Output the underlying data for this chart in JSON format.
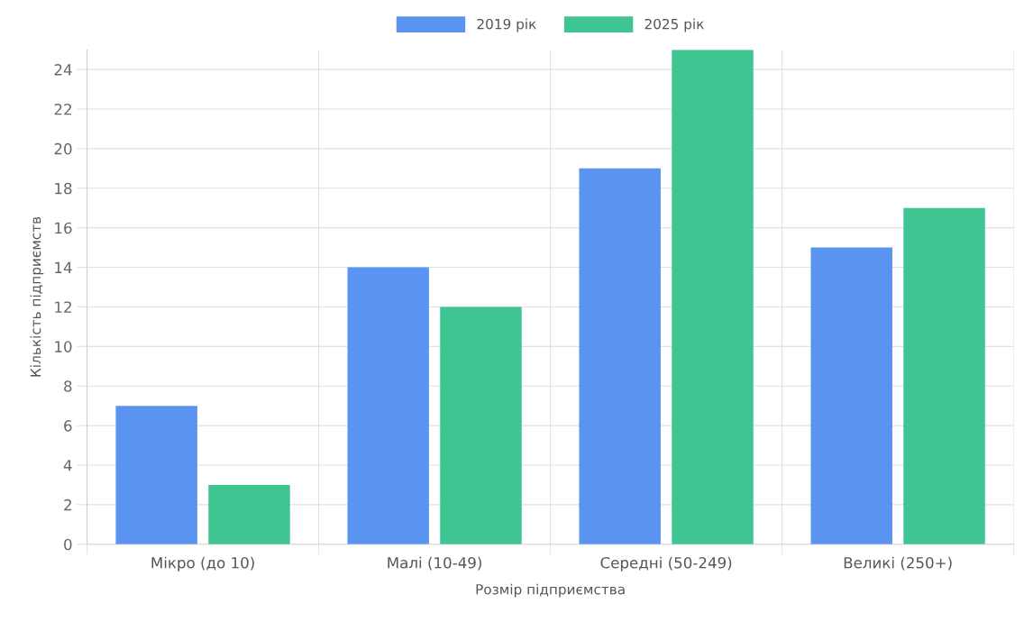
{
  "chart_data": {
    "type": "bar",
    "categories": [
      "Мікро (до 10)",
      "Малі (10-49)",
      "Середні (50-249)",
      "Великі (250+)"
    ],
    "series": [
      {
        "name": "2019 рік",
        "color": "#5b94f0",
        "values": [
          7,
          14,
          19,
          15
        ]
      },
      {
        "name": "2025 рік",
        "color": "#3ec592",
        "values": [
          3,
          12,
          25,
          17
        ]
      }
    ],
    "xlabel": "Розмір підприємства",
    "ylabel": "Кількість підприємств",
    "ylim": [
      0,
      25
    ],
    "yticks": [
      0,
      2,
      4,
      6,
      8,
      10,
      12,
      14,
      16,
      18,
      20,
      22,
      24
    ],
    "grid": true,
    "legend": "top"
  }
}
